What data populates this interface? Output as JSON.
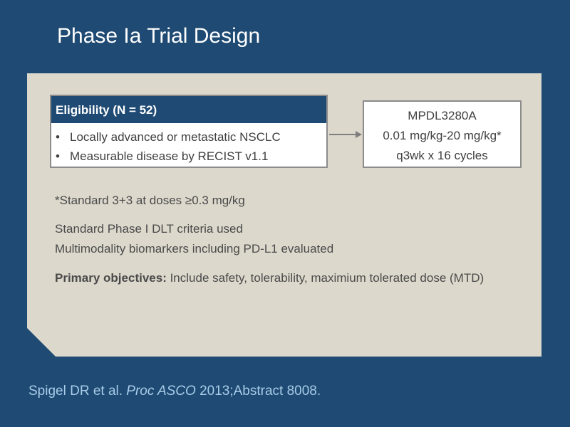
{
  "slide": {
    "title": "Phase Ia Trial Design"
  },
  "eligibility": {
    "header": "Eligibility (N = 52)",
    "bullet_glyph": "•",
    "items": [
      "Locally advanced or metastatic NSCLC",
      "Measurable disease by RECIST v1.1"
    ]
  },
  "treatment": {
    "lines": [
      "MPDL3280A",
      "0.01 mg/kg-20 mg/kg*",
      "q3wk x 16 cycles"
    ]
  },
  "notes": {
    "footnote": "*Standard 3+3 at doses ≥0.3 mg/kg",
    "dlt": "Standard Phase I DLT criteria used",
    "biomarkers": "Multimodality biomarkers including PD-L1 evaluated",
    "objectives_label": "Primary objectives:",
    "objectives_text": " Include safety, tolerability, maximium tolerated dose (MTD)"
  },
  "citation": {
    "authors": "Spigel DR et al. ",
    "journal": "Proc ASCO",
    "rest": " 2013;Abstract 8008."
  },
  "colors": {
    "background": "#1f4a73",
    "panel": "#ddd8cc",
    "citation": "#a8cce8"
  }
}
